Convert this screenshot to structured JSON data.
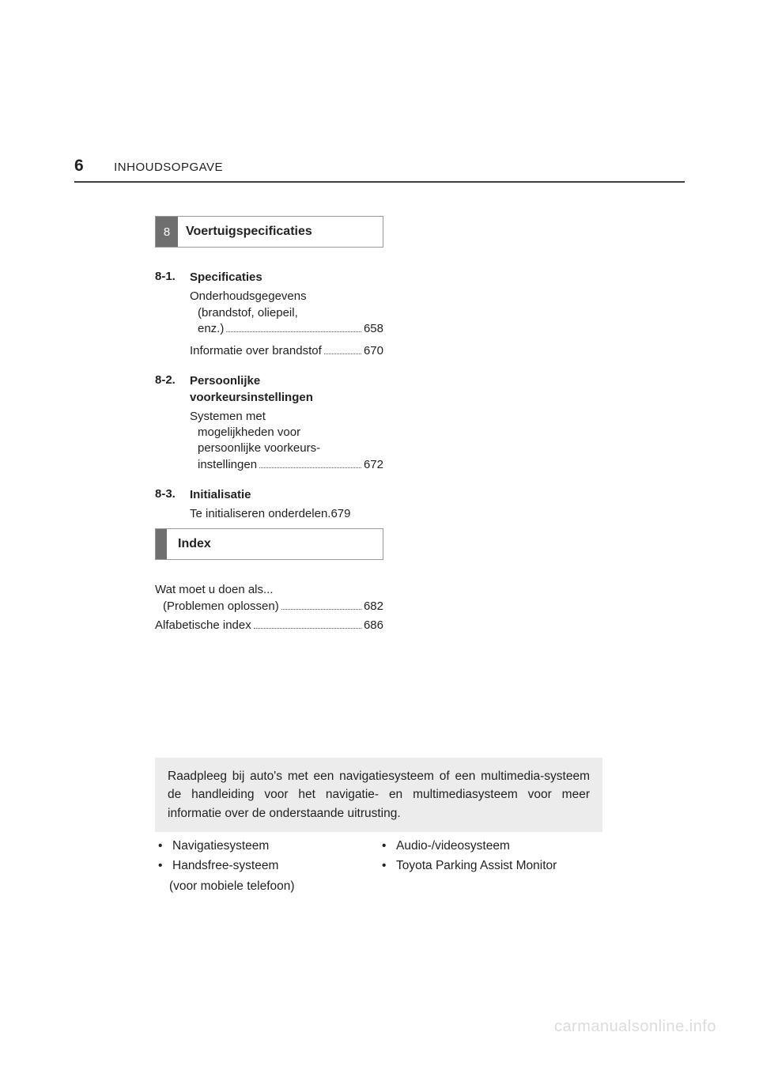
{
  "colors": {
    "text": "#222222",
    "rule": "#3d3d3d",
    "tab_bg": "#6f6f6f",
    "tab_border": "#999999",
    "note_bg": "#ececec",
    "watermark": "#dcdcdc",
    "page_bg": "#ffffff"
  },
  "header": {
    "page_number": "6",
    "title": "INHOUDSOPGAVE"
  },
  "section8": {
    "tab_number": "8",
    "tab_title": "Voertuigspecificaties",
    "sub1": {
      "num": "8-1.",
      "title": "Specificaties",
      "entry1_line1": "Onderhoudsgegevens",
      "entry1_line2": "(brandstof, oliepeil,",
      "entry1_line3": "enz.)",
      "entry1_page": "658",
      "entry2_text": "Informatie over brandstof",
      "entry2_page": "670"
    },
    "sub2": {
      "num": "8-2.",
      "title_line1": "Persoonlijke",
      "title_line2": "voorkeursinstellingen",
      "entry1_line1": "Systemen met",
      "entry1_line2": "mogelijkheden voor",
      "entry1_line3": "persoonlijke voorkeurs-",
      "entry1_line4": "instellingen",
      "entry1_page": "672"
    },
    "sub3": {
      "num": "8-3.",
      "title": "Initialisatie",
      "entry1_text": "Te initialiseren onderdelen.",
      "entry1_page": "679"
    }
  },
  "index": {
    "tab_title": "Index",
    "entry1_line1": "Wat moet u doen als...",
    "entry1_line2": "(Problemen oplossen)",
    "entry1_page": "682",
    "entry2_text": "Alfabetische index",
    "entry2_page": "686"
  },
  "note": {
    "text": "Raadpleeg bij auto's met een navigatiesysteem of een multimedia-systeem de handleiding voor het navigatie- en multimediasysteem voor meer informatie over de onderstaande uitrusting."
  },
  "equipment": {
    "left": {
      "item1": "Navigatiesysteem",
      "item2": "Handsfree-systeem",
      "item2_sub": "(voor mobiele telefoon)"
    },
    "right": {
      "item1": "Audio-/videosysteem",
      "item2": "Toyota Parking Assist Monitor"
    }
  },
  "watermark": "carmanualsonline.info",
  "bullet": "•"
}
